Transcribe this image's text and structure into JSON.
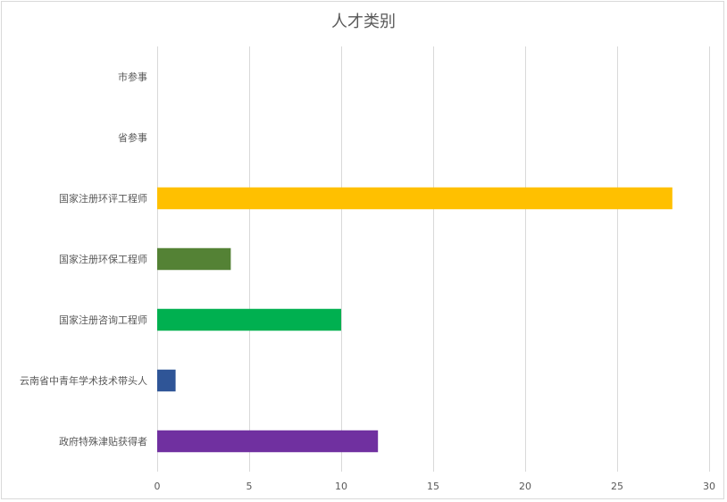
{
  "chart_data": {
    "type": "bar",
    "orientation": "horizontal",
    "title": "人才类别",
    "xlabel": "",
    "ylabel": "",
    "xlim": [
      0,
      30
    ],
    "xticks": [
      0,
      5,
      10,
      15,
      20,
      25,
      30
    ],
    "grid": true,
    "legend": "none",
    "categories": [
      "市参事",
      "省参事",
      "国家注册环评工程师",
      "国家注册环保工程师",
      "国家注册咨询工程师",
      "云南省中青年学术技术带头人",
      "政府特殊津贴获得者"
    ],
    "values": [
      0,
      0,
      28,
      4,
      10,
      1,
      12
    ],
    "colors": [
      "#5b9bd5",
      "#ed7d31",
      "#ffc000",
      "#548235",
      "#00b050",
      "#2f5597",
      "#7030a0"
    ]
  }
}
